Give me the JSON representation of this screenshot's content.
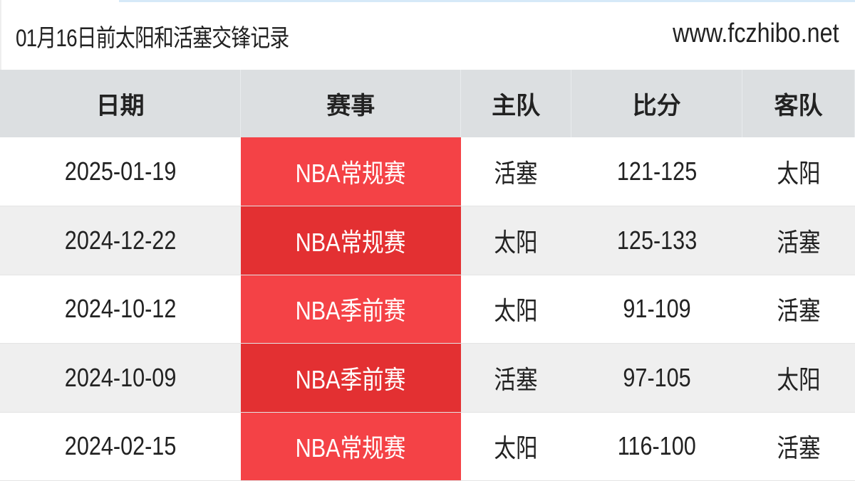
{
  "header": {
    "title": "01月16日前太阳和活塞交锋记录",
    "site": "www.fczhibo.net"
  },
  "table": {
    "columns": [
      "日期",
      "赛事",
      "主队",
      "比分",
      "客队"
    ],
    "rows": [
      [
        "2025-01-19",
        "NBA常规赛",
        "活塞",
        "121-125",
        "太阳"
      ],
      [
        "2024-12-22",
        "NBA常规赛",
        "太阳",
        "125-133",
        "活塞"
      ],
      [
        "2024-10-12",
        "NBA季前赛",
        "太阳",
        "91-109",
        "活塞"
      ],
      [
        "2024-10-09",
        "NBA季前赛",
        "活塞",
        "97-105",
        "太阳"
      ],
      [
        "2024-02-15",
        "NBA常规赛",
        "太阳",
        "116-100",
        "活塞"
      ]
    ]
  },
  "colors": {
    "competition_cell": "#f44246",
    "competition_cell_alt": "#e33032",
    "header_bg": "#dcdfe1"
  }
}
